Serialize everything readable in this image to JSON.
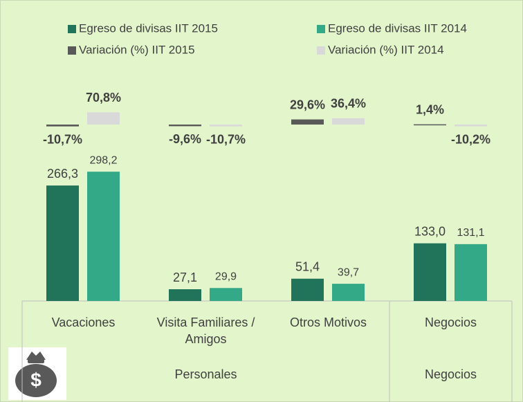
{
  "chart_data": {
    "type": "bar",
    "categories": [
      "Vacaciones",
      "Visita Familiares / Amigos",
      "Otros Motivos",
      "Negocios"
    ],
    "groups": [
      {
        "label": "Personales",
        "span": 3
      },
      {
        "label": "Negocios",
        "span": 1
      }
    ],
    "series": [
      {
        "name": "Egreso de divisas IIT 2015",
        "color": "#21745a",
        "values": [
          266.3,
          27.1,
          51.4,
          133.0
        ],
        "value_labels": [
          "266,3",
          "27,1",
          "51,4",
          "133,0"
        ]
      },
      {
        "name": "Egreso de divisas IIT 2014",
        "color": "#33a987",
        "values": [
          298.2,
          29.9,
          39.7,
          131.1
        ],
        "value_labels": [
          "298,2",
          "29,9",
          "39,7",
          "131,1"
        ]
      },
      {
        "name": "Variación (%) IIT 2015",
        "color": "#595959",
        "axis": "y2",
        "values": [
          -10.7,
          -9.6,
          29.6,
          1.4
        ],
        "value_labels": [
          "-10,7%",
          "-9,6%",
          "29,6%",
          "1,4%"
        ]
      },
      {
        "name": "Variación (%) IIT 2014",
        "color": "#d9d9d9",
        "axis": "y2",
        "values": [
          70.8,
          -10.7,
          36.4,
          -10.2
        ],
        "value_labels": [
          "70,8%",
          "-10,7%",
          "36,4%",
          "-10,2%"
        ]
      }
    ],
    "ylim": [
      0,
      300
    ],
    "y2lim": [
      -20,
      80
    ]
  }
}
